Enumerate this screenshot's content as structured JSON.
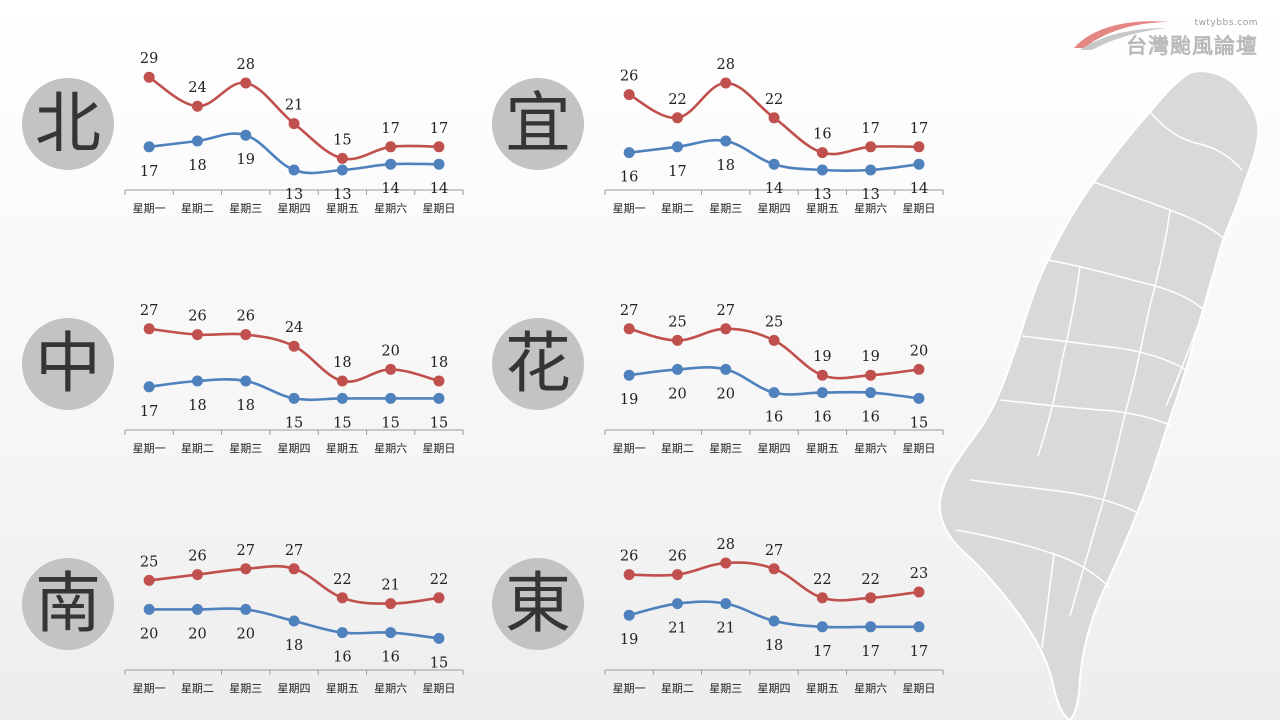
{
  "logo": {
    "url": "twtybbs.com",
    "name": "台灣颱風論壇"
  },
  "colors": {
    "high": "#c0504d",
    "low": "#4f81bd",
    "badge": "#c3c3c3",
    "map": "#d9d9d9"
  },
  "chart_data": [
    {
      "type": "line",
      "region": "北",
      "categories": [
        "星期一",
        "星期二",
        "星期三",
        "星期四",
        "星期五",
        "星期六",
        "星期日"
      ],
      "series": [
        {
          "values": [
            29,
            24,
            28,
            21,
            15,
            17,
            17
          ],
          "color": "#c0504d"
        },
        {
          "values": [
            17,
            18,
            19,
            13,
            13,
            14,
            14
          ],
          "color": "#4f81bd"
        }
      ]
    },
    {
      "type": "line",
      "region": "宜",
      "categories": [
        "星期一",
        "星期二",
        "星期三",
        "星期四",
        "星期五",
        "星期六",
        "星期日"
      ],
      "series": [
        {
          "values": [
            26,
            22,
            28,
            22,
            16,
            17,
            17
          ],
          "color": "#c0504d"
        },
        {
          "values": [
            16,
            17,
            18,
            14,
            13,
            13,
            14
          ],
          "color": "#4f81bd"
        }
      ]
    },
    {
      "type": "line",
      "region": "中",
      "categories": [
        "星期一",
        "星期二",
        "星期三",
        "星期四",
        "星期五",
        "星期六",
        "星期日"
      ],
      "series": [
        {
          "values": [
            27,
            26,
            26,
            24,
            18,
            20,
            18
          ],
          "color": "#c0504d"
        },
        {
          "values": [
            17,
            18,
            18,
            15,
            15,
            15,
            15
          ],
          "color": "#4f81bd"
        }
      ]
    },
    {
      "type": "line",
      "region": "花",
      "categories": [
        "星期一",
        "星期二",
        "星期三",
        "星期四",
        "星期五",
        "星期六",
        "星期日"
      ],
      "series": [
        {
          "values": [
            27,
            25,
            27,
            25,
            19,
            19,
            20
          ],
          "color": "#c0504d"
        },
        {
          "values": [
            19,
            20,
            20,
            16,
            16,
            16,
            15
          ],
          "color": "#4f81bd"
        }
      ]
    },
    {
      "type": "line",
      "region": "南",
      "categories": [
        "星期一",
        "星期二",
        "星期三",
        "星期四",
        "星期五",
        "星期六",
        "星期日"
      ],
      "series": [
        {
          "values": [
            25,
            26,
            27,
            27,
            22,
            21,
            22
          ],
          "color": "#c0504d"
        },
        {
          "values": [
            20,
            20,
            20,
            18,
            16,
            16,
            15
          ],
          "color": "#4f81bd"
        }
      ]
    },
    {
      "type": "line",
      "region": "東",
      "categories": [
        "星期一",
        "星期二",
        "星期三",
        "星期四",
        "星期五",
        "星期六",
        "星期日"
      ],
      "series": [
        {
          "values": [
            26,
            26,
            28,
            27,
            22,
            22,
            23
          ],
          "color": "#c0504d"
        },
        {
          "values": [
            19,
            21,
            21,
            18,
            17,
            17,
            17
          ],
          "color": "#4f81bd"
        }
      ]
    }
  ]
}
